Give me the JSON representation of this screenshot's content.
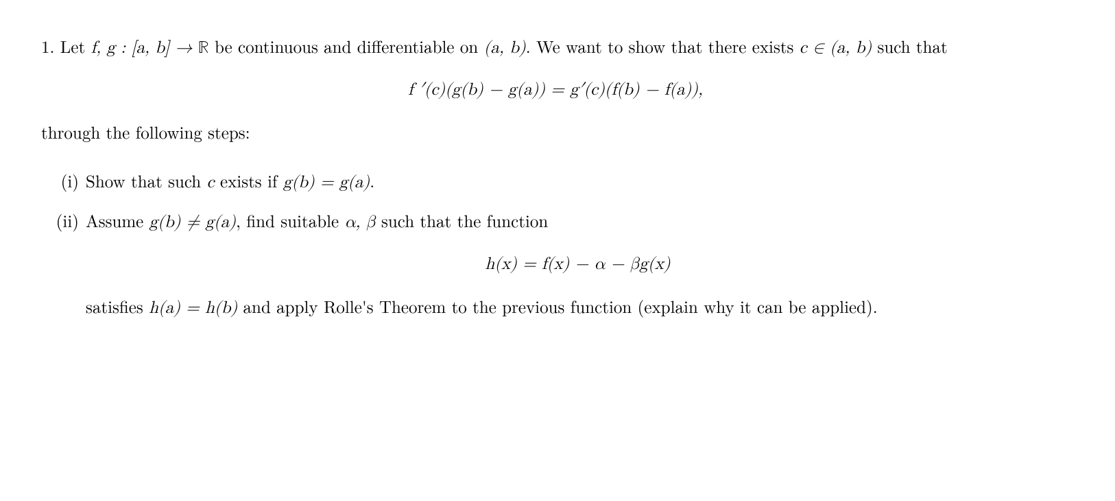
{
  "problem": {
    "number": "1.",
    "intro_part1": "Let ",
    "intro_math1": "f, g : [a, b] → ",
    "intro_real": "ℝ",
    "intro_part2": " be continuous and differentiable on ",
    "intro_math2": "(a, b)",
    "intro_part3": ". We want to show that there exists ",
    "intro_math3": "c ∈ (a, b)",
    "intro_part4": " such that",
    "equation1": "f ′(c)(g(b) − g(a)) = g′(c)(f(b) − f(a)),",
    "followup": "through the following steps:",
    "steps": [
      {
        "label": "(i)",
        "text_a": "Show that such ",
        "math_a": "c",
        "text_b": " exists if ",
        "math_b": "g(b) = g(a)",
        "text_c": "."
      },
      {
        "label": "(ii)",
        "text_a": "Assume ",
        "math_a": "g(b) ≠ g(a)",
        "text_b": ", find suitable ",
        "math_b": "α, β",
        "text_c": " such that the function",
        "equation": "h(x) = f(x) − α − βg(x)",
        "text_d": "satisfies ",
        "math_c": "h(a) = h(b)",
        "text_e": " and apply Rolle's Theorem to the previous function (explain why it can be applied)."
      }
    ]
  }
}
